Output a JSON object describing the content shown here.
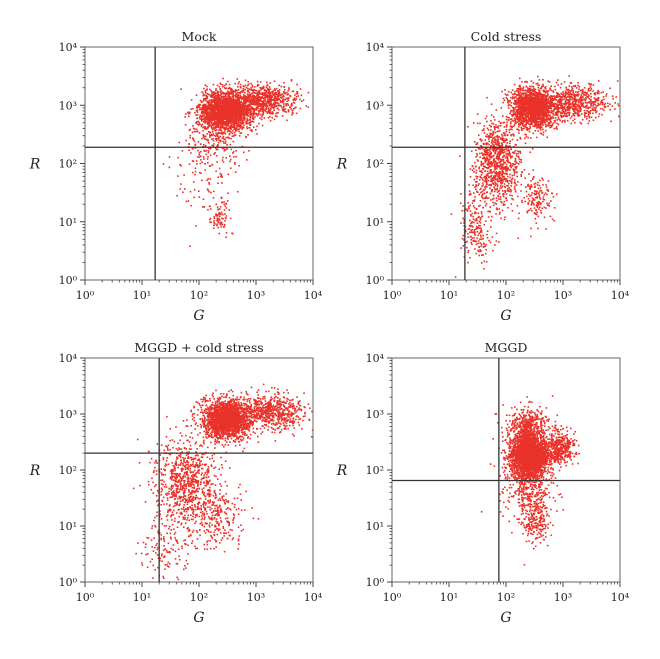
{
  "chart_data": [
    {
      "type": "scatter",
      "title": "Mock",
      "xlabel": "G",
      "ylabel": "R",
      "xscale": "log",
      "yscale": "log",
      "xlim": [
        1,
        10000
      ],
      "ylim": [
        1,
        10000
      ],
      "xticks": [
        "10⁰",
        "10¹",
        "10²",
        "10³",
        "10⁴"
      ],
      "yticks": [
        "10⁰",
        "10¹",
        "10²",
        "10³",
        "10⁴"
      ],
      "gate": {
        "x": 17,
        "y": 190
      },
      "color": "#e8322a",
      "clusters": [
        {
          "cx": 300,
          "cy": 800,
          "sx": 0.22,
          "sy": 0.17,
          "n": 2200
        },
        {
          "cx": 1400,
          "cy": 1200,
          "sx": 0.28,
          "sy": 0.14,
          "n": 700
        },
        {
          "cx": 180,
          "cy": 250,
          "sx": 0.25,
          "sy": 0.3,
          "n": 250
        },
        {
          "cx": 230,
          "cy": 12,
          "sx": 0.1,
          "sy": 0.14,
          "n": 80
        },
        {
          "cx": 90,
          "cy": 40,
          "sx": 0.3,
          "sy": 0.4,
          "n": 60
        }
      ]
    },
    {
      "type": "scatter",
      "title": "Cold stress",
      "xlabel": "G",
      "ylabel": "R",
      "xscale": "log",
      "yscale": "log",
      "xlim": [
        1,
        10000
      ],
      "ylim": [
        1,
        10000
      ],
      "xticks": [
        "10⁰",
        "10¹",
        "10²",
        "10³",
        "10⁴"
      ],
      "yticks": [
        "10⁰",
        "10¹",
        "10²",
        "10³",
        "10⁴"
      ],
      "gate": {
        "x": 19,
        "y": 190
      },
      "color": "#e8322a",
      "clusters": [
        {
          "cx": 300,
          "cy": 900,
          "sx": 0.2,
          "sy": 0.17,
          "n": 1700
        },
        {
          "cx": 1600,
          "cy": 1100,
          "sx": 0.3,
          "sy": 0.15,
          "n": 600
        },
        {
          "cx": 70,
          "cy": 100,
          "sx": 0.2,
          "sy": 0.35,
          "n": 900
        },
        {
          "cx": 350,
          "cy": 25,
          "sx": 0.14,
          "sy": 0.2,
          "n": 150
        },
        {
          "cx": 30,
          "cy": 8,
          "sx": 0.15,
          "sy": 0.3,
          "n": 200
        }
      ]
    },
    {
      "type": "scatter",
      "title": "MGGD + cold stress",
      "xlabel": "G",
      "ylabel": "R",
      "xscale": "log",
      "yscale": "log",
      "xlim": [
        1,
        10000
      ],
      "ylim": [
        1,
        10000
      ],
      "xticks": [
        "10⁰",
        "10¹",
        "10²",
        "10³",
        "10⁴"
      ],
      "yticks": [
        "10⁰",
        "10¹",
        "10²",
        "10³",
        "10⁴"
      ],
      "gate": {
        "x": 20,
        "y": 200
      },
      "color": "#e8322a",
      "clusters": [
        {
          "cx": 300,
          "cy": 800,
          "sx": 0.2,
          "sy": 0.17,
          "n": 1900
        },
        {
          "cx": 1800,
          "cy": 1100,
          "sx": 0.3,
          "sy": 0.15,
          "n": 650
        },
        {
          "cx": 60,
          "cy": 60,
          "sx": 0.28,
          "sy": 0.4,
          "n": 800
        },
        {
          "cx": 200,
          "cy": 15,
          "sx": 0.25,
          "sy": 0.3,
          "n": 250
        },
        {
          "cx": 25,
          "cy": 4,
          "sx": 0.2,
          "sy": 0.3,
          "n": 120
        }
      ]
    },
    {
      "type": "scatter",
      "title": "MGGD",
      "xlabel": "G",
      "ylabel": "R",
      "xscale": "log",
      "yscale": "log",
      "xlim": [
        1,
        10000
      ],
      "ylim": [
        1,
        10000
      ],
      "xticks": [
        "10⁰",
        "10¹",
        "10²",
        "10³",
        "10⁴"
      ],
      "yticks": [
        "10⁰",
        "10¹",
        "10²",
        "10³",
        "10⁴"
      ],
      "gate": {
        "x": 75,
        "y": 65
      },
      "color": "#e8322a",
      "clusters": [
        {
          "cx": 260,
          "cy": 180,
          "sx": 0.17,
          "sy": 0.2,
          "n": 2600
        },
        {
          "cx": 900,
          "cy": 250,
          "sx": 0.12,
          "sy": 0.14,
          "n": 350
        },
        {
          "cx": 250,
          "cy": 600,
          "sx": 0.2,
          "sy": 0.18,
          "n": 400
        },
        {
          "cx": 330,
          "cy": 12,
          "sx": 0.12,
          "sy": 0.2,
          "n": 200
        },
        {
          "cx": 250,
          "cy": 40,
          "sx": 0.2,
          "sy": 0.3,
          "n": 300
        }
      ]
    }
  ]
}
